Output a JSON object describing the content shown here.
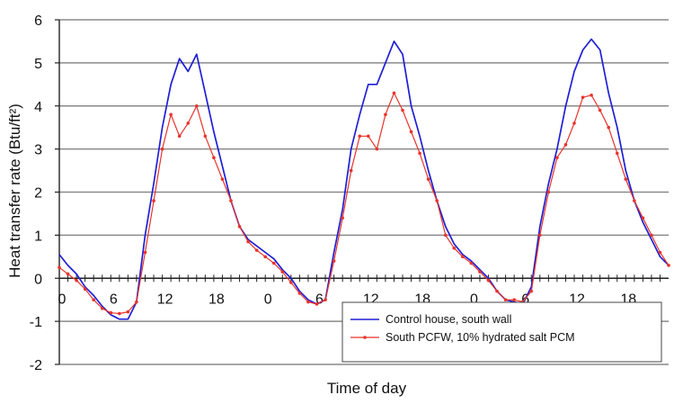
{
  "chart_data": {
    "type": "line",
    "xlabel": "Time of day",
    "ylabel": "Heat transfer rate (Btu/ft²)",
    "ylim": [
      -2,
      6
    ],
    "yticks": [
      -2,
      -1,
      0,
      1,
      2,
      3,
      4,
      5,
      6
    ],
    "xlim": [
      0,
      71
    ],
    "xticks": [
      {
        "x": 0,
        "label": "0"
      },
      {
        "x": 6,
        "label": "6"
      },
      {
        "x": 12,
        "label": "12"
      },
      {
        "x": 18,
        "label": "18"
      },
      {
        "x": 24,
        "label": "0"
      },
      {
        "x": 30,
        "label": "6"
      },
      {
        "x": 36,
        "label": "12"
      },
      {
        "x": 42,
        "label": "18"
      },
      {
        "x": 48,
        "label": "0"
      },
      {
        "x": 54,
        "label": "6"
      },
      {
        "x": 60,
        "label": "12"
      },
      {
        "x": 66,
        "label": "18"
      },
      {
        "x": 72,
        "label": "0"
      }
    ],
    "grid": "horizontal",
    "legend_position": "bottom-right",
    "series": [
      {
        "name": "Control house, south wall",
        "color": "#1f1fd6",
        "marker": "none",
        "points": [
          [
            0,
            0.55
          ],
          [
            1,
            0.3
          ],
          [
            2,
            0.1
          ],
          [
            3,
            -0.2
          ],
          [
            4,
            -0.4
          ],
          [
            5,
            -0.65
          ],
          [
            6,
            -0.85
          ],
          [
            7,
            -0.95
          ],
          [
            8,
            -0.95
          ],
          [
            9,
            -0.55
          ],
          [
            10,
            1.0
          ],
          [
            11,
            2.2
          ],
          [
            12,
            3.5
          ],
          [
            13,
            4.5
          ],
          [
            14,
            5.1
          ],
          [
            15,
            4.8
          ],
          [
            16,
            5.2
          ],
          [
            17,
            4.3
          ],
          [
            18,
            3.4
          ],
          [
            19,
            2.6
          ],
          [
            20,
            1.8
          ],
          [
            21,
            1.2
          ],
          [
            22,
            0.9
          ],
          [
            23,
            0.75
          ],
          [
            24,
            0.6
          ],
          [
            25,
            0.45
          ],
          [
            26,
            0.2
          ],
          [
            27,
            0.0
          ],
          [
            28,
            -0.3
          ],
          [
            29,
            -0.5
          ],
          [
            30,
            -0.6
          ],
          [
            31,
            -0.5
          ],
          [
            32,
            0.6
          ],
          [
            33,
            1.6
          ],
          [
            34,
            3.0
          ],
          [
            35,
            3.8
          ],
          [
            36,
            4.5
          ],
          [
            37,
            4.5
          ],
          [
            38,
            5.0
          ],
          [
            39,
            5.5
          ],
          [
            40,
            5.2
          ],
          [
            41,
            4.0
          ],
          [
            42,
            3.3
          ],
          [
            43,
            2.5
          ],
          [
            44,
            1.8
          ],
          [
            45,
            1.2
          ],
          [
            46,
            0.8
          ],
          [
            47,
            0.55
          ],
          [
            48,
            0.4
          ],
          [
            49,
            0.2
          ],
          [
            50,
            0.0
          ],
          [
            51,
            -0.3
          ],
          [
            52,
            -0.5
          ],
          [
            53,
            -0.55
          ],
          [
            54,
            -0.6
          ],
          [
            55,
            -0.2
          ],
          [
            56,
            1.2
          ],
          [
            57,
            2.2
          ],
          [
            58,
            3.0
          ],
          [
            59,
            4.0
          ],
          [
            60,
            4.8
          ],
          [
            61,
            5.3
          ],
          [
            62,
            5.55
          ],
          [
            63,
            5.3
          ],
          [
            64,
            4.3
          ],
          [
            65,
            3.5
          ],
          [
            66,
            2.5
          ],
          [
            67,
            1.8
          ],
          [
            68,
            1.3
          ],
          [
            69,
            0.9
          ],
          [
            70,
            0.5
          ],
          [
            71,
            0.3
          ],
          [
            72,
            0.2
          ],
          [
            73,
            0.15
          ]
        ]
      },
      {
        "name": "South PCFW, 10% hydrated salt PCM",
        "color": "#e8332a",
        "marker": "dot",
        "points": [
          [
            0,
            0.25
          ],
          [
            1,
            0.1
          ],
          [
            2,
            -0.05
          ],
          [
            3,
            -0.25
          ],
          [
            4,
            -0.5
          ],
          [
            5,
            -0.7
          ],
          [
            6,
            -0.8
          ],
          [
            7,
            -0.82
          ],
          [
            8,
            -0.78
          ],
          [
            9,
            -0.55
          ],
          [
            10,
            0.6
          ],
          [
            11,
            1.8
          ],
          [
            12,
            3.0
          ],
          [
            13,
            3.8
          ],
          [
            14,
            3.3
          ],
          [
            15,
            3.6
          ],
          [
            16,
            4.0
          ],
          [
            17,
            3.3
          ],
          [
            18,
            2.8
          ],
          [
            19,
            2.3
          ],
          [
            20,
            1.8
          ],
          [
            21,
            1.2
          ],
          [
            22,
            0.85
          ],
          [
            23,
            0.65
          ],
          [
            24,
            0.5
          ],
          [
            25,
            0.35
          ],
          [
            26,
            0.15
          ],
          [
            27,
            -0.1
          ],
          [
            28,
            -0.35
          ],
          [
            29,
            -0.55
          ],
          [
            30,
            -0.6
          ],
          [
            31,
            -0.5
          ],
          [
            32,
            0.4
          ],
          [
            33,
            1.4
          ],
          [
            34,
            2.5
          ],
          [
            35,
            3.3
          ],
          [
            36,
            3.3
          ],
          [
            37,
            3.0
          ],
          [
            38,
            3.8
          ],
          [
            39,
            4.3
          ],
          [
            40,
            3.9
          ],
          [
            41,
            3.4
          ],
          [
            42,
            2.9
          ],
          [
            43,
            2.3
          ],
          [
            44,
            1.8
          ],
          [
            45,
            1.0
          ],
          [
            46,
            0.7
          ],
          [
            47,
            0.5
          ],
          [
            48,
            0.35
          ],
          [
            49,
            0.15
          ],
          [
            50,
            -0.05
          ],
          [
            51,
            -0.3
          ],
          [
            52,
            -0.5
          ],
          [
            53,
            -0.5
          ],
          [
            54,
            -0.55
          ],
          [
            55,
            -0.3
          ],
          [
            56,
            1.0
          ],
          [
            57,
            2.0
          ],
          [
            58,
            2.8
          ],
          [
            59,
            3.1
          ],
          [
            60,
            3.6
          ],
          [
            61,
            4.2
          ],
          [
            62,
            4.25
          ],
          [
            63,
            3.9
          ],
          [
            64,
            3.5
          ],
          [
            65,
            2.9
          ],
          [
            66,
            2.3
          ],
          [
            67,
            1.8
          ],
          [
            68,
            1.4
          ],
          [
            69,
            1.0
          ],
          [
            70,
            0.6
          ],
          [
            71,
            0.3
          ],
          [
            72,
            0.15
          ],
          [
            73,
            0.0
          ]
        ]
      }
    ]
  }
}
